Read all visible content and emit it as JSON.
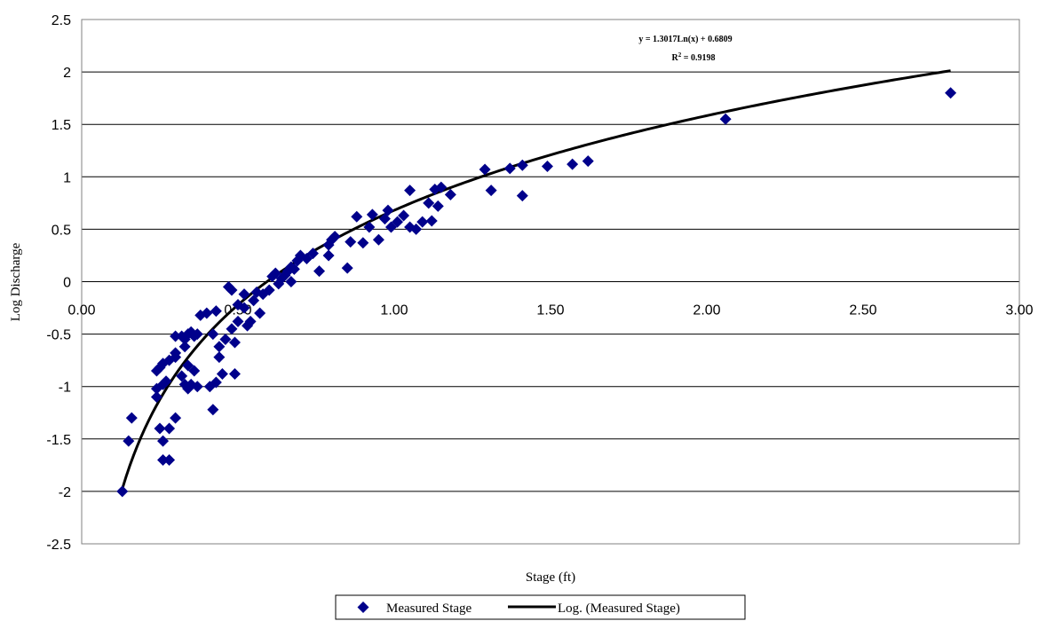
{
  "chart_data": {
    "type": "scatter",
    "xlabel": "Stage (ft)",
    "ylabel": "Log Discharge",
    "xlim": [
      0,
      3
    ],
    "ylim": [
      -2.5,
      2.5
    ],
    "x_ticks": [
      "0.00",
      "0.50",
      "1.00",
      "1.50",
      "2.00",
      "2.50",
      "3.00"
    ],
    "y_ticks": [
      "2.5",
      "2",
      "1.5",
      "1",
      "0.5",
      "0",
      "-0.5",
      "-1",
      "-1.5",
      "-2",
      "-2.5"
    ],
    "grid": "horizontal",
    "marker_color": "#00008B",
    "trend_color": "#000000",
    "series": [
      {
        "name": "Measured Stage",
        "points": [
          [
            0.13,
            -2.0
          ],
          [
            0.15,
            -1.52
          ],
          [
            0.16,
            -1.3
          ],
          [
            0.25,
            -1.4
          ],
          [
            0.26,
            -1.52
          ],
          [
            0.26,
            -1.7
          ],
          [
            0.28,
            -1.7
          ],
          [
            0.28,
            -1.4
          ],
          [
            0.3,
            -1.3
          ],
          [
            0.24,
            -1.1
          ],
          [
            0.24,
            -1.02
          ],
          [
            0.26,
            -0.98
          ],
          [
            0.27,
            -0.95
          ],
          [
            0.24,
            -0.85
          ],
          [
            0.25,
            -0.82
          ],
          [
            0.26,
            -0.78
          ],
          [
            0.28,
            -0.75
          ],
          [
            0.3,
            -0.72
          ],
          [
            0.3,
            -0.68
          ],
          [
            0.3,
            -0.52
          ],
          [
            0.32,
            -0.52
          ],
          [
            0.33,
            -0.55
          ],
          [
            0.34,
            -0.5
          ],
          [
            0.35,
            -0.48
          ],
          [
            0.36,
            -0.52
          ],
          [
            0.37,
            -0.5
          ],
          [
            0.33,
            -0.62
          ],
          [
            0.34,
            -0.8
          ],
          [
            0.32,
            -0.9
          ],
          [
            0.33,
            -0.98
          ],
          [
            0.34,
            -1.02
          ],
          [
            0.35,
            -0.98
          ],
          [
            0.36,
            -0.85
          ],
          [
            0.37,
            -1.0
          ],
          [
            0.38,
            -0.32
          ],
          [
            0.4,
            -0.3
          ],
          [
            0.42,
            -0.5
          ],
          [
            0.43,
            -0.28
          ],
          [
            0.41,
            -1.0
          ],
          [
            0.42,
            -1.22
          ],
          [
            0.43,
            -0.96
          ],
          [
            0.44,
            -0.72
          ],
          [
            0.44,
            -0.62
          ],
          [
            0.45,
            -0.88
          ],
          [
            0.46,
            -0.55
          ],
          [
            0.47,
            -0.05
          ],
          [
            0.48,
            -0.08
          ],
          [
            0.48,
            -0.45
          ],
          [
            0.49,
            -0.58
          ],
          [
            0.49,
            -0.88
          ],
          [
            0.5,
            -0.38
          ],
          [
            0.5,
            -0.22
          ],
          [
            0.52,
            -0.12
          ],
          [
            0.52,
            -0.25
          ],
          [
            0.53,
            -0.42
          ],
          [
            0.54,
            -0.38
          ],
          [
            0.55,
            -0.18
          ],
          [
            0.56,
            -0.1
          ],
          [
            0.57,
            -0.3
          ],
          [
            0.58,
            -0.12
          ],
          [
            0.6,
            -0.08
          ],
          [
            0.61,
            0.05
          ],
          [
            0.62,
            0.08
          ],
          [
            0.63,
            -0.02
          ],
          [
            0.64,
            0.03
          ],
          [
            0.65,
            0.06
          ],
          [
            0.66,
            0.1
          ],
          [
            0.67,
            0.14
          ],
          [
            0.67,
            0.0
          ],
          [
            0.68,
            0.12
          ],
          [
            0.69,
            0.2
          ],
          [
            0.7,
            0.25
          ],
          [
            0.72,
            0.22
          ],
          [
            0.74,
            0.27
          ],
          [
            0.76,
            0.1
          ],
          [
            0.79,
            0.25
          ],
          [
            0.79,
            0.35
          ],
          [
            0.8,
            0.4
          ],
          [
            0.81,
            0.43
          ],
          [
            0.85,
            0.13
          ],
          [
            0.86,
            0.38
          ],
          [
            0.88,
            0.62
          ],
          [
            0.9,
            0.37
          ],
          [
            0.92,
            0.52
          ],
          [
            0.93,
            0.64
          ],
          [
            0.95,
            0.4
          ],
          [
            0.97,
            0.6
          ],
          [
            0.98,
            0.68
          ],
          [
            0.99,
            0.52
          ],
          [
            1.01,
            0.57
          ],
          [
            1.03,
            0.63
          ],
          [
            1.05,
            0.87
          ],
          [
            1.05,
            0.52
          ],
          [
            1.07,
            0.5
          ],
          [
            1.09,
            0.57
          ],
          [
            1.11,
            0.75
          ],
          [
            1.12,
            0.58
          ],
          [
            1.13,
            0.88
          ],
          [
            1.14,
            0.72
          ],
          [
            1.15,
            0.9
          ],
          [
            1.18,
            0.83
          ],
          [
            1.29,
            1.07
          ],
          [
            1.31,
            0.87
          ],
          [
            1.37,
            1.08
          ],
          [
            1.41,
            1.11
          ],
          [
            1.41,
            0.82
          ],
          [
            1.49,
            1.1
          ],
          [
            1.57,
            1.12
          ],
          [
            1.62,
            1.15
          ],
          [
            2.06,
            1.55
          ],
          [
            2.78,
            1.8
          ]
        ]
      },
      {
        "name": "Log. (Measured Stage)",
        "type": "trendline",
        "model": "logarithmic",
        "a": 1.3017,
        "b": 0.6809,
        "x_range": [
          0.13,
          2.78
        ]
      }
    ],
    "annotations": {
      "equation": "y = 1.3017Ln(x) + 0.6809",
      "r_squared_prefix": "R",
      "r_squared_sup": "2",
      "r_squared_value": " = 0.9198"
    },
    "legend": {
      "placement": "bottom-center",
      "entries": [
        "Measured Stage",
        "Log. (Measured Stage)"
      ]
    }
  }
}
